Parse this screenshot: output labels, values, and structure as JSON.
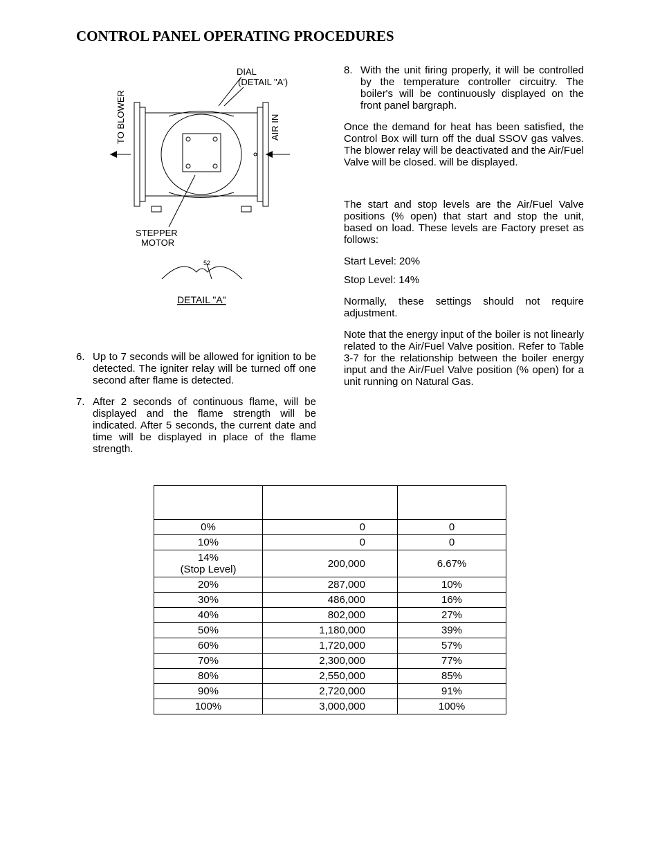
{
  "title": "CONTROL PANEL OPERATING PROCEDURES",
  "figure": {
    "dial_label": "DIAL",
    "detail_ref": "(DETAIL \"A')",
    "to_blower": "TO BLOWER",
    "air_in": "AIR IN",
    "stepper": "STEPPER",
    "motor": "MOTOR",
    "detail_a": "DETAIL  \"A\""
  },
  "left_items": [
    {
      "num": "6.",
      "text": "Up to 7 seconds will be allowed for ignition to be detected.  The igniter relay will be turned off one second after flame is detected."
    },
    {
      "num": "7.",
      "text": "After 2 seconds of continuous flame, will be displayed and the flame strength will be indicated.  After 5 seconds, the current date and time will be displayed in place of the flame strength."
    }
  ],
  "right_items": [
    {
      "num": "8.",
      "text": "With the unit firing properly, it will be controlled by the temperature controller circuitry. The boiler's                               will be continuously displayed on the front panel bargraph."
    }
  ],
  "right_paras": [
    "Once the demand for heat has been satisfied, the Control Box will turn off the dual SSOV gas valves.  The blower relay will be deactivated and the Air/Fuel Valve will be closed.            will be displayed.",
    "The start and stop levels are the Air/Fuel Valve positions (% open) that start and stop the unit, based on load.  These levels are Factory preset as follows:"
  ],
  "levels": {
    "start": "Start Level:   20%",
    "stop": "Stop Level:   14%"
  },
  "right_paras2": [
    "Normally, these settings should not require adjustment.",
    "Note that the energy input of the boiler is not linearly related to the Air/Fuel Valve position. Refer to Table 3-7 for the relationship between the boiler energy input and the Air/Fuel Valve position (% open) for a unit running on Natural Gas."
  ],
  "table": {
    "rows": [
      [
        "0%",
        "0",
        "0"
      ],
      [
        "10%",
        "0",
        "0"
      ],
      [
        "14%\n(Stop Level)",
        "200,000",
        "6.67%"
      ],
      [
        "20%",
        "287,000",
        "10%"
      ],
      [
        "30%",
        "486,000",
        "16%"
      ],
      [
        "40%",
        "802,000",
        "27%"
      ],
      [
        "50%",
        "1,180,000",
        "39%"
      ],
      [
        "60%",
        "1,720,000",
        "57%"
      ],
      [
        "70%",
        "2,300,000",
        "77%"
      ],
      [
        "80%",
        "2,550,000",
        "85%"
      ],
      [
        "90%",
        "2,720,000",
        "91%"
      ],
      [
        "100%",
        "3,000,000",
        "100%"
      ]
    ]
  }
}
